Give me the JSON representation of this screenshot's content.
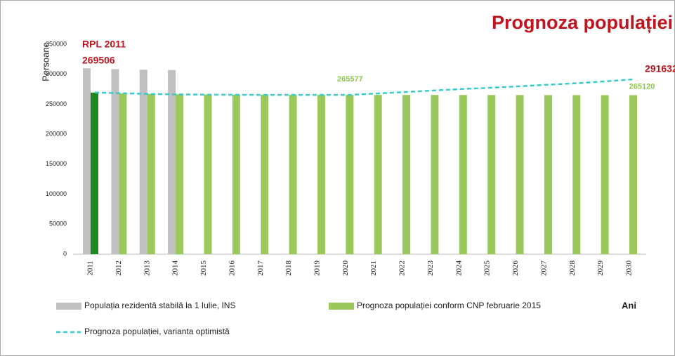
{
  "chart_data": {
    "type": "bar",
    "title": "Prognoza populației",
    "y_label": "Persoane",
    "x_label": "Ani",
    "categories": [
      "2011",
      "2012",
      "2013",
      "2014",
      "2015",
      "2016",
      "2017",
      "2018",
      "2019",
      "2020",
      "2021",
      "2022",
      "2023",
      "2024",
      "2025",
      "2026",
      "2027",
      "2028",
      "2029",
      "2030"
    ],
    "series": [
      {
        "name": "Populația rezidentă stabilă la 1 Iulie, INS",
        "type": "bar",
        "color": "#c0c0c0",
        "values": [
          310000,
          308500,
          307500,
          307000,
          null,
          null,
          null,
          null,
          null,
          null,
          null,
          null,
          null,
          null,
          null,
          null,
          null,
          null,
          null,
          null
        ]
      },
      {
        "name": "Prognoza populației conform CNP februarie 2015",
        "type": "bar",
        "color": "#9bc85a",
        "colors": [
          "#1e8a1e",
          "#9bc85a",
          "#9bc85a",
          "#9bc85a",
          "#9bc85a",
          "#9bc85a",
          "#9bc85a",
          "#9bc85a",
          "#9bc85a",
          "#9bc85a",
          "#9bc85a",
          "#9bc85a",
          "#9bc85a",
          "#9bc85a",
          "#9bc85a",
          "#9bc85a",
          "#9bc85a",
          "#9bc85a",
          "#9bc85a",
          "#9bc85a"
        ],
        "label_color": "#8cc84b",
        "values": [
          269506,
          268000,
          267200,
          266600,
          266100,
          265900,
          265800,
          265700,
          265600,
          265577,
          265550,
          265500,
          265450,
          265400,
          265350,
          265300,
          265250,
          265200,
          265150,
          265120
        ],
        "value_labels": [
          null,
          null,
          null,
          null,
          null,
          null,
          null,
          null,
          null,
          "265577",
          null,
          null,
          null,
          null,
          null,
          null,
          null,
          null,
          null,
          "265120"
        ]
      },
      {
        "name": "Prognoza populației, varianta optimistă",
        "type": "line",
        "color": "#33cccc",
        "dashed": true,
        "label_color": "#c0141e",
        "values": [
          269506,
          268200,
          267000,
          266300,
          265900,
          265700,
          265600,
          265550,
          265500,
          265577,
          268000,
          270500,
          273000,
          275500,
          277500,
          280000,
          282500,
          285000,
          288000,
          291632
        ],
        "value_labels": [
          "269506",
          null,
          null,
          null,
          null,
          null,
          null,
          null,
          null,
          null,
          null,
          null,
          null,
          null,
          null,
          null,
          null,
          null,
          null,
          "291632"
        ]
      }
    ],
    "annotation": "RPL 2011",
    "ylim": [
      0,
      350000
    ],
    "yticks": [
      0,
      50000,
      100000,
      150000,
      200000,
      250000,
      300000,
      350000
    ],
    "grid": false
  }
}
